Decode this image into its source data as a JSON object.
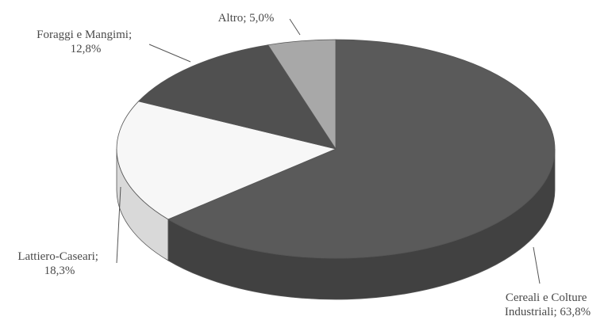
{
  "chart_data": {
    "type": "pie",
    "variant": "3d",
    "slices": [
      {
        "label_lines": [
          "Cereali e Colture",
          "Industriali; 63,8%"
        ],
        "name": "Cereali e Colture Industriali",
        "value": 63.8,
        "color": "#5a5a5a"
      },
      {
        "label_lines": [
          "Lattiero-Caseari;",
          "18,3%"
        ],
        "name": "Lattiero-Caseari",
        "value": 18.3,
        "color": "#f7f7f7"
      },
      {
        "label_lines": [
          "Foraggi e Mangimi;",
          "12,8%"
        ],
        "name": "Foraggi e Mangimi",
        "value": 12.8,
        "color": "#505050"
      },
      {
        "label_lines": [
          "Altro; 5,0%"
        ],
        "name": "Altro",
        "value": 5.0,
        "color": "#a8a8a8"
      }
    ]
  }
}
